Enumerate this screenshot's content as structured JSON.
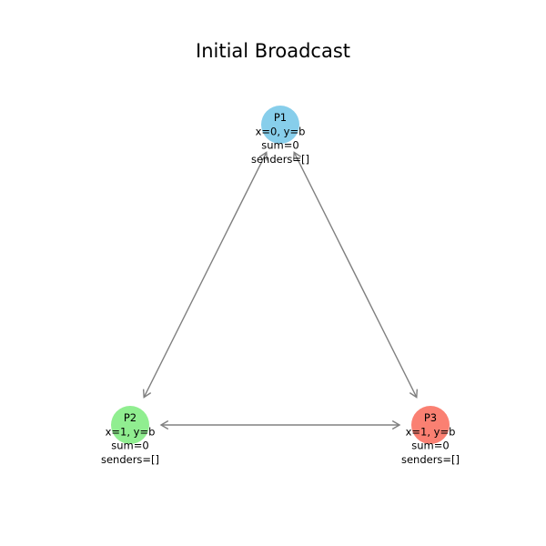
{
  "title": "Initial Broadcast",
  "colors": {
    "edge": "#808080",
    "text": "#000000"
  },
  "nodes": [
    {
      "id": "P1",
      "name": "P1",
      "state": "x=0, y=b",
      "sum": "sum=0",
      "senders": "senders=[]",
      "color": "#87ceeb"
    },
    {
      "id": "P2",
      "name": "P2",
      "state": "x=1, y=b",
      "sum": "sum=0",
      "senders": "senders=[]",
      "color": "#90ee90"
    },
    {
      "id": "P3",
      "name": "P3",
      "state": "x=1, y=b",
      "sum": "sum=0",
      "senders": "senders=[]",
      "color": "#fa8072"
    }
  ],
  "edges": [
    {
      "from": "P1",
      "to": "P2",
      "bidirectional": true
    },
    {
      "from": "P1",
      "to": "P3",
      "bidirectional": true
    },
    {
      "from": "P2",
      "to": "P3",
      "bidirectional": true
    }
  ]
}
